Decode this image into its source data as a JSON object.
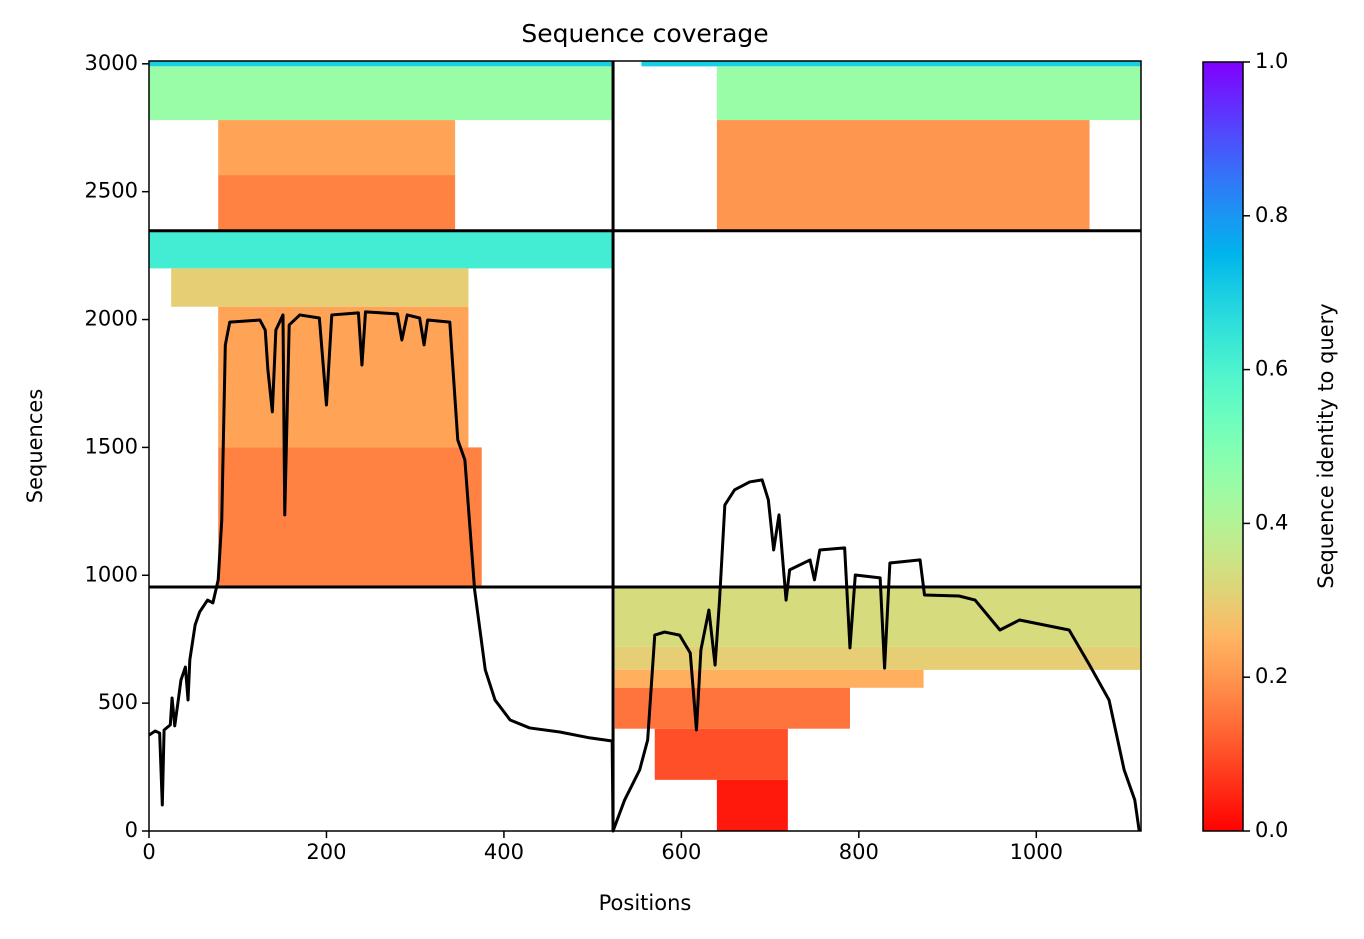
{
  "chart_data": {
    "type": "coverage",
    "title": "Sequence coverage",
    "xlabel": "Positions",
    "ylabel": "Sequences",
    "colorbar_label": "Sequence identity to query",
    "colormap": "rainbow_r",
    "xlim": [
      0,
      1118
    ],
    "ylim": [
      0,
      3011
    ],
    "xticks": [
      0,
      200,
      400,
      600,
      800,
      1000
    ],
    "yticks": [
      0,
      500,
      1000,
      1500,
      2000,
      2500,
      3000
    ],
    "clim": [
      0,
      1
    ],
    "cticks": [
      {
        "value": 0,
        "label": "0.0"
      },
      {
        "value": 0.2,
        "label": "0.2"
      },
      {
        "value": 0.4,
        "label": "0.4"
      },
      {
        "value": 0.6,
        "label": "0.6"
      },
      {
        "value": 0.8,
        "label": "0.8"
      },
      {
        "value": 1,
        "label": "1.0"
      }
    ],
    "dividers": {
      "x": [
        523
      ],
      "y": [
        954,
        2347
      ]
    },
    "blocks": [
      {
        "x0": 0,
        "x1": 523,
        "y0": 2990,
        "y1": 3011,
        "identity": 0.7
      },
      {
        "x0": 0,
        "x1": 523,
        "y0": 2780,
        "y1": 2990,
        "identity": 0.45
      },
      {
        "x0": 78,
        "x1": 345,
        "y0": 2565,
        "y1": 2780,
        "identity": 0.22
      },
      {
        "x0": 78,
        "x1": 345,
        "y0": 2350,
        "y1": 2565,
        "identity": 0.17
      },
      {
        "x0": 555,
        "x1": 1118,
        "y0": 2990,
        "y1": 3011,
        "identity": 0.7
      },
      {
        "x0": 640,
        "x1": 1118,
        "y0": 2780,
        "y1": 2990,
        "identity": 0.45
      },
      {
        "x0": 640,
        "x1": 1060,
        "y0": 2350,
        "y1": 2780,
        "identity": 0.2
      },
      {
        "x0": 0,
        "x1": 523,
        "y0": 2200,
        "y1": 2347,
        "identity": 0.62
      },
      {
        "x0": 25,
        "x1": 360,
        "y0": 2050,
        "y1": 2200,
        "identity": 0.3
      },
      {
        "x0": 78,
        "x1": 360,
        "y0": 1500,
        "y1": 2050,
        "identity": 0.22
      },
      {
        "x0": 78,
        "x1": 375,
        "y0": 954,
        "y1": 1500,
        "identity": 0.17
      },
      {
        "x0": 525,
        "x1": 1118,
        "y0": 720,
        "y1": 954,
        "identity": 0.33
      },
      {
        "x0": 525,
        "x1": 1118,
        "y0": 630,
        "y1": 720,
        "identity": 0.3
      },
      {
        "x0": 525,
        "x1": 873,
        "y0": 560,
        "y1": 630,
        "identity": 0.24
      },
      {
        "x0": 525,
        "x1": 790,
        "y0": 400,
        "y1": 560,
        "identity": 0.15
      },
      {
        "x0": 570,
        "x1": 720,
        "y0": 200,
        "y1": 400,
        "identity": 0.1
      },
      {
        "x0": 640,
        "x1": 720,
        "y0": 0,
        "y1": 200,
        "identity": 0.03
      }
    ],
    "coverage": {
      "x": [
        0,
        7,
        12,
        15,
        17,
        24,
        26,
        29,
        33,
        36,
        41,
        44,
        46,
        52,
        57,
        66,
        72,
        78,
        82,
        86,
        91,
        125,
        131,
        134,
        139,
        143,
        151,
        153,
        158,
        170,
        192,
        200,
        206,
        236,
        240,
        244,
        280,
        285,
        291,
        305,
        310,
        314,
        339,
        348,
        356,
        367,
        379,
        390,
        407,
        429,
        463,
        497,
        522,
        523,
        536,
        553,
        562,
        570,
        581,
        598,
        610,
        617,
        622,
        631,
        638,
        643,
        649,
        660,
        677,
        691,
        698,
        704,
        710,
        718,
        722,
        745,
        750,
        756,
        784,
        790,
        796,
        824,
        829,
        835,
        869,
        874,
        913,
        931,
        959,
        981,
        1037,
        1060,
        1082,
        1099,
        1111,
        1116
      ],
      "values": [
        375,
        391,
        383,
        102,
        395,
        415,
        520,
        411,
        512,
        590,
        641,
        512,
        669,
        806,
        856,
        903,
        892,
        982,
        1216,
        1900,
        1990,
        1998,
        1959,
        1803,
        1639,
        1959,
        2018,
        1236,
        1979,
        2018,
        2006,
        1666,
        2018,
        2026,
        1822,
        2030,
        2022,
        1920,
        2018,
        2006,
        1901,
        1998,
        1990,
        1529,
        1451,
        942,
        630,
        512,
        434,
        403,
        387,
        364,
        352,
        0,
        121,
        239,
        356,
        766,
        778,
        766,
        696,
        395,
        708,
        864,
        649,
        903,
        1275,
        1334,
        1365,
        1373,
        1295,
        1099,
        1236,
        903,
        1021,
        1060,
        982,
        1099,
        1107,
        716,
        1001,
        990,
        637,
        1048,
        1060,
        923,
        919,
        903,
        786,
        825,
        786,
        649,
        512,
        239,
        121,
        0
      ]
    }
  }
}
